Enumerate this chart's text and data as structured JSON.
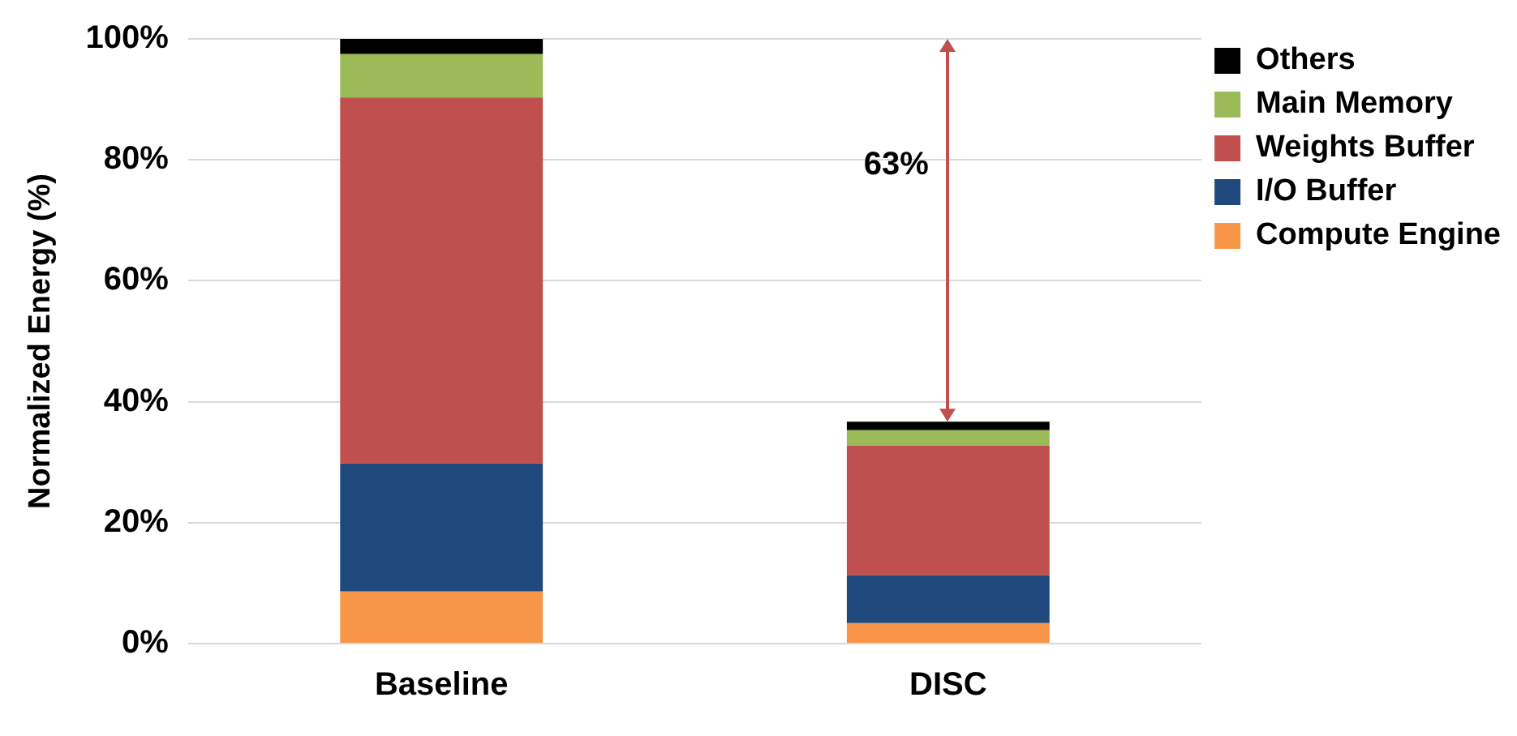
{
  "chart_data": {
    "type": "bar",
    "stacked": true,
    "ylabel": "Normalized Energy (%)",
    "categories": [
      "Baseline",
      "DISC"
    ],
    "series": [
      {
        "name": "Compute Engine",
        "color": "#f79646",
        "values": [
          8.6,
          3.4
        ]
      },
      {
        "name": "I/O Buffer",
        "color": "#1f497d",
        "values": [
          21.2,
          7.9
        ]
      },
      {
        "name": "Weights Buffer",
        "color": "#c0504d",
        "values": [
          60.5,
          21.4
        ]
      },
      {
        "name": "Main Memory",
        "color": "#9bbb59",
        "values": [
          7.2,
          2.6
        ]
      },
      {
        "name": "Others",
        "color": "#000000",
        "values": [
          2.5,
          1.4
        ]
      }
    ],
    "ylim": [
      0,
      100
    ],
    "yticks": [
      {
        "value": 0,
        "label": "0%"
      },
      {
        "value": 20,
        "label": "20%"
      },
      {
        "value": 40,
        "label": "40%"
      },
      {
        "value": 60,
        "label": "60%"
      },
      {
        "value": 80,
        "label": "80%"
      },
      {
        "value": 100,
        "label": "100%"
      }
    ],
    "grid": "y",
    "legend": "top right",
    "annotations": [
      "63%"
    ]
  }
}
